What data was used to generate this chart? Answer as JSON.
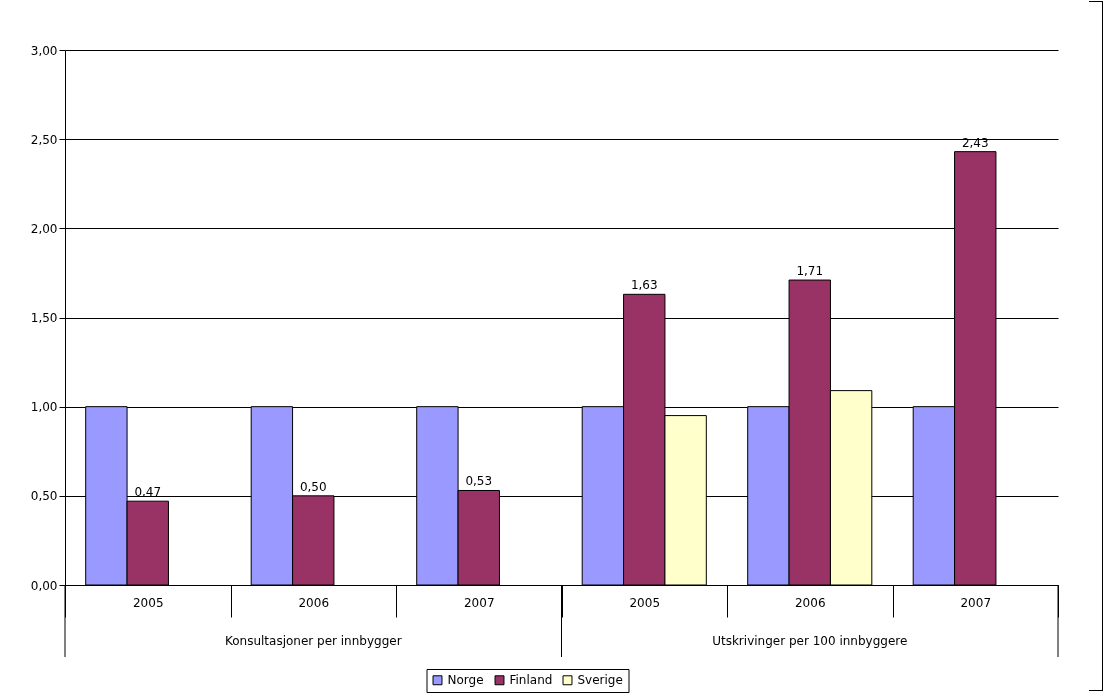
{
  "chart_data": {
    "type": "bar",
    "categories": [
      "2005",
      "2006",
      "2007",
      "2005",
      "2006",
      "2007"
    ],
    "annotations": [
      "Konsultasjoner per innbygger",
      "Utskrivinger per 100 innbyggere"
    ],
    "series": [
      {
        "name": "Norge",
        "color": "#9999ff",
        "values": [
          1.0,
          1.0,
          1.0,
          1.0,
          1.0,
          1.0
        ]
      },
      {
        "name": "Finland",
        "color": "#993366",
        "values": [
          0.47,
          0.5,
          0.53,
          1.63,
          1.71,
          2.43
        ],
        "value_labels": [
          "0,47",
          "0,50",
          "0,53",
          "1,63",
          "1,71",
          "2,43"
        ]
      },
      {
        "name": "Sverige",
        "color": "#ffffcc",
        "values": [
          null,
          null,
          null,
          0.95,
          1.09,
          null
        ]
      }
    ],
    "ylim": [
      0,
      3
    ],
    "yticks": [
      {
        "value": 0,
        "label": "0,00"
      },
      {
        "value": 0.5,
        "label": "0,50"
      },
      {
        "value": 1,
        "label": "1,00"
      },
      {
        "value": 1.5,
        "label": "1,50"
      },
      {
        "value": 2,
        "label": "2,00"
      },
      {
        "value": 2.5,
        "label": "2,50"
      },
      {
        "value": 3,
        "label": "3,00"
      }
    ],
    "grid": "y",
    "legend": "bottom"
  }
}
